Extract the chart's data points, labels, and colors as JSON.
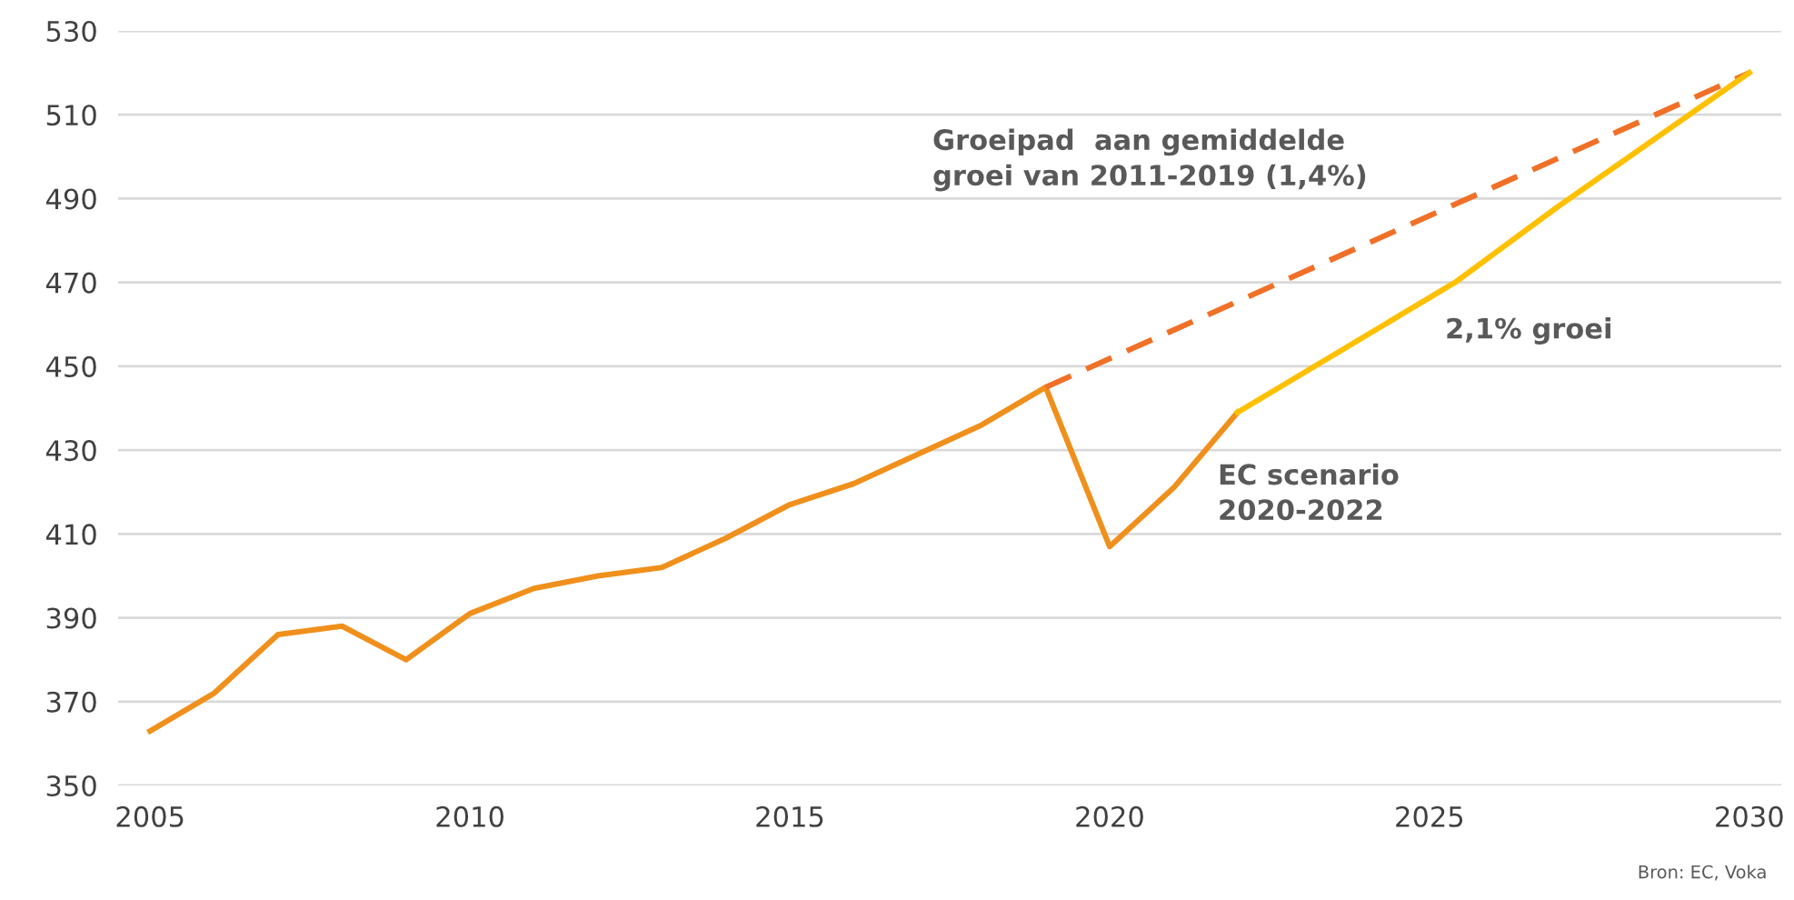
{
  "chart_data": {
    "type": "line",
    "xlim": [
      2004.5,
      2030.5
    ],
    "ylim": [
      350,
      530
    ],
    "xticks": [
      2005,
      2010,
      2015,
      2020,
      2025,
      2030
    ],
    "yticks": [
      350,
      370,
      390,
      410,
      430,
      450,
      470,
      490,
      510,
      530
    ],
    "grid": "y",
    "line_style": "solid",
    "marker": "none",
    "series": [
      {
        "color": "#f0901c",
        "x": [
          2005,
          2006,
          2007,
          2008,
          2009,
          2010,
          2011,
          2012,
          2013,
          2014,
          2015,
          2016,
          2017,
          2018,
          2019,
          2020,
          2021,
          2022
        ],
        "values": [
          363,
          372,
          386,
          388,
          380,
          391,
          397,
          400,
          402,
          409,
          417,
          422,
          429,
          436,
          445,
          407,
          421,
          439
        ]
      },
      {
        "color": "#f07028",
        "line_style": "dashed",
        "x": [
          2019,
          2030
        ],
        "values": [
          445,
          520
        ]
      },
      {
        "color": "#ffc000",
        "x": [
          2022,
          2025.4,
          2027,
          2030
        ],
        "values": [
          439,
          470,
          488,
          520
        ]
      }
    ],
    "annotations": [
      "Groeipad  aan gemiddelde\ngroei van 2011-2019 (1,4%)",
      "2,1% groei",
      "EC scenario\n2020-2022",
      "Bron: EC, Voka"
    ]
  }
}
